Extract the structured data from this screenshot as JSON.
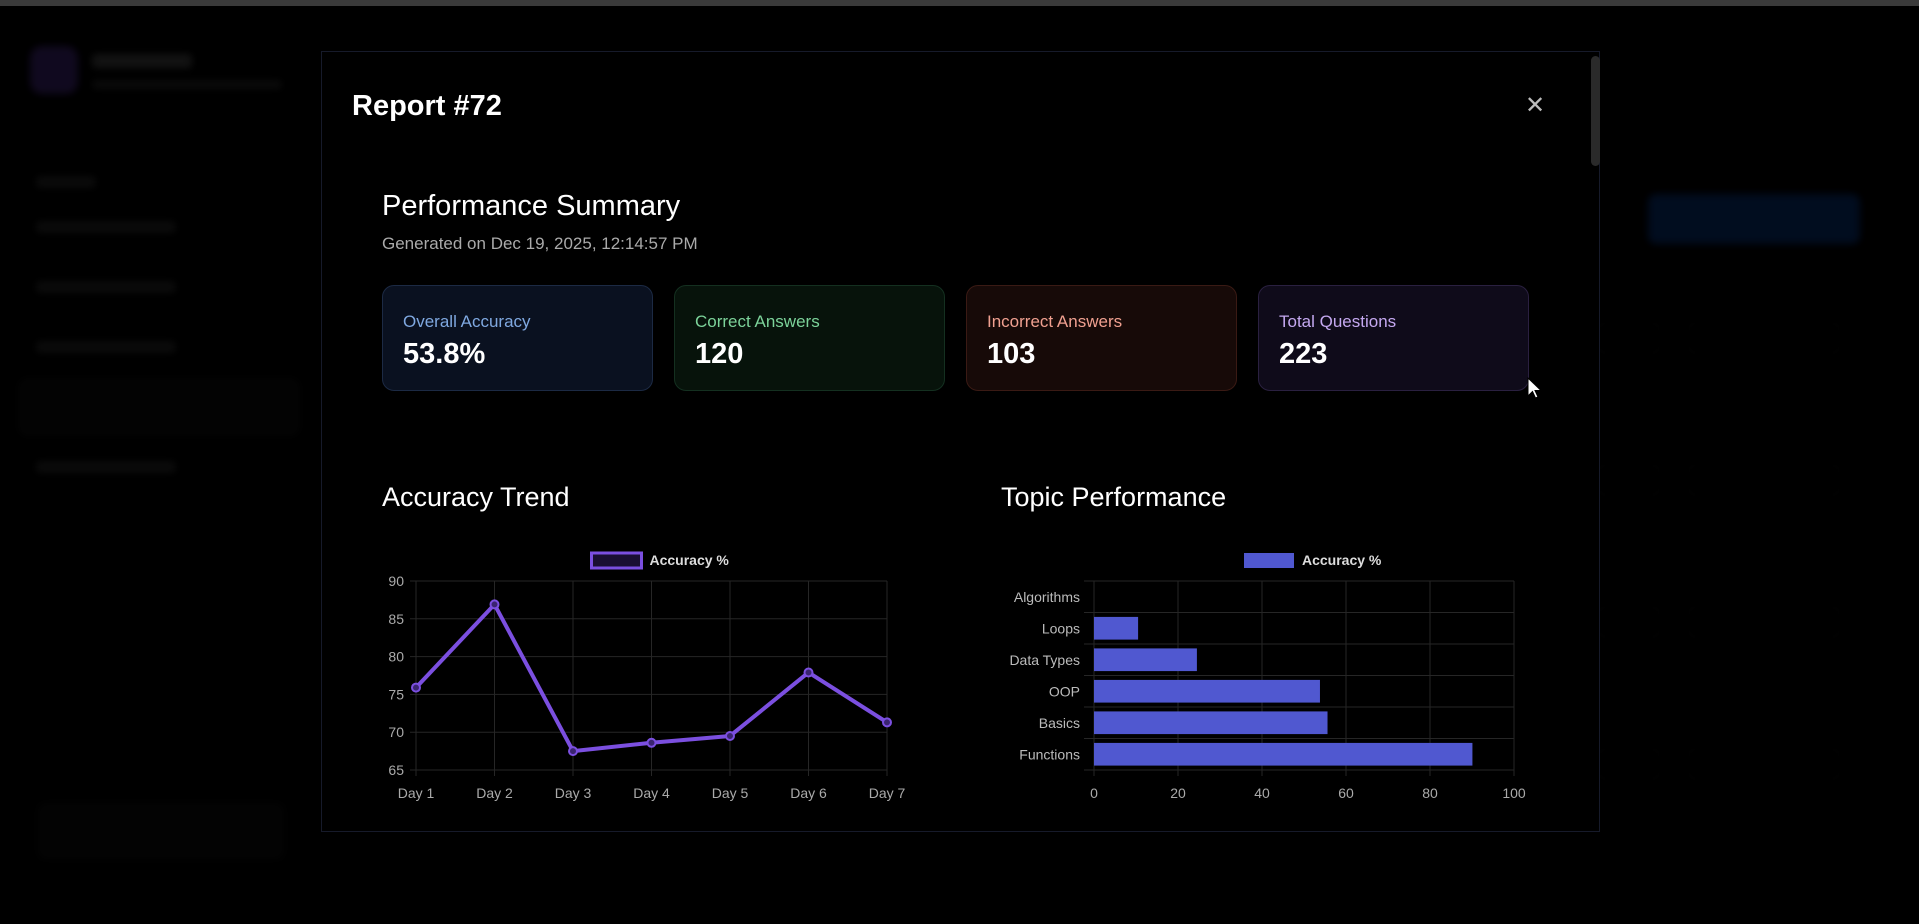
{
  "modal": {
    "title": "Report #72",
    "close_icon": "close-icon",
    "summary_title": "Performance Summary",
    "generated": "Generated on Dec 19, 2025, 12:14:57 PM",
    "cards": [
      {
        "label": "Overall Accuracy",
        "value": "53.8%",
        "accent": "#7fa8e0"
      },
      {
        "label": "Correct Answers",
        "value": "120",
        "accent": "#7cd39a"
      },
      {
        "label": "Incorrect Answers",
        "value": "103",
        "accent": "#f0a090"
      },
      {
        "label": "Total Questions",
        "value": "223",
        "accent": "#c4a8f0"
      }
    ],
    "trend_title": "Accuracy Trend",
    "topic_title": "Topic Performance"
  },
  "chart_data": [
    {
      "type": "line",
      "legend": "Accuracy %",
      "categories": [
        "Day 1",
        "Day 2",
        "Day 3",
        "Day 4",
        "Day 5",
        "Day 6",
        "Day 7"
      ],
      "series": [
        {
          "name": "Accuracy %",
          "values": [
            75.9,
            86.9,
            67.5,
            68.6,
            69.5,
            77.9,
            71.3
          ]
        }
      ],
      "ylim": [
        65,
        90
      ],
      "yticks": [
        65,
        70,
        75,
        80,
        85,
        90
      ],
      "grid": true,
      "legend_position": "top",
      "color": "#7b4fe0"
    },
    {
      "type": "bar",
      "orientation": "horizontal",
      "legend": "Accuracy %",
      "categories": [
        "Algorithms",
        "Loops",
        "Data Types",
        "OOP",
        "Basics",
        "Functions"
      ],
      "series": [
        {
          "name": "Accuracy %",
          "values": [
            0,
            10.5,
            24.5,
            53.8,
            55.6,
            90.1
          ]
        }
      ],
      "xlim": [
        0,
        100
      ],
      "xticks": [
        0,
        20,
        40,
        60,
        80,
        100
      ],
      "grid": true,
      "legend_position": "top",
      "color": "#5058d0"
    }
  ]
}
